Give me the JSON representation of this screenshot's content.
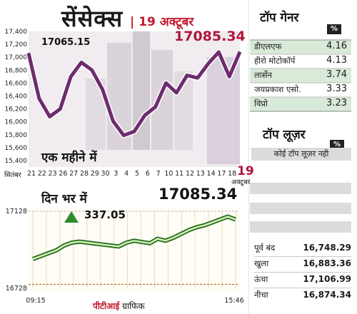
{
  "header": {
    "title": "सेंसेक्स",
    "date": "| 19 अक्टूबर"
  },
  "top_gainers": {
    "title": "टॉप गेनर",
    "unit": "%",
    "items": [
      {
        "name": "डीएलएफ",
        "value": "4.16"
      },
      {
        "name": "हीरो मोटोकॉर्प",
        "value": "4.13"
      },
      {
        "name": "लार्सेन",
        "value": "3.74"
      },
      {
        "name": "जयप्रकाश एसो.",
        "value": "3.33"
      },
      {
        "name": "विप्रो",
        "value": "3.23"
      }
    ]
  },
  "top_losers": {
    "title": "टॉप लूज़र",
    "unit": "%",
    "message": "कोई टॉप लूज़र नही"
  },
  "summary": {
    "items": [
      {
        "label": "पूर्व बंद",
        "value": "16,748.29"
      },
      {
        "label": "खुला",
        "value": "16,883.36"
      },
      {
        "label": "ऊंचा",
        "value": "17,106.99"
      },
      {
        "label": "नीचा",
        "value": "16,874.34"
      }
    ]
  },
  "credit": {
    "agency": "पीटीआई",
    "text": "ग्राफिक"
  },
  "colors": {
    "line": "#6e2c6e",
    "accent": "#b0163a",
    "gain_up": "#2e8b2e",
    "band": "#dcdcdc"
  },
  "chart_data": [
    {
      "type": "line",
      "id": "monthly",
      "title": "",
      "subtitle": "एक महीने में",
      "xlabel": "",
      "ylabel": "",
      "first_month": "सितंबर",
      "last_month": "अक्टूबर",
      "last_date": "19",
      "x_ticks": [
        "21",
        "22",
        "23",
        "26",
        "27",
        "28",
        "29",
        "30",
        "3",
        "4",
        "5",
        "6",
        "7",
        "10",
        "11",
        "12",
        "13",
        "14",
        "17",
        "18"
      ],
      "y_ticks": [
        "17,400",
        "17,200",
        "17,000",
        "16,800",
        "16,600",
        "16,400",
        "16,200",
        "16,000",
        "15,800",
        "15,600",
        "15,400"
      ],
      "ylim": [
        15300,
        17400
      ],
      "series": [
        {
          "x": [
            "21 Sep",
            "22 Sep",
            "23 Sep",
            "26 Sep",
            "27 Sep",
            "28 Sep",
            "29 Sep",
            "30 Sep",
            "3 Oct",
            "4 Oct",
            "5 Oct",
            "6 Oct",
            "7 Oct",
            "10 Oct",
            "11 Oct",
            "12 Oct",
            "13 Oct",
            "14 Oct",
            "17 Oct",
            "18 Oct",
            "19 Oct"
          ],
          "values": [
            17065.15,
            16361,
            16080,
            16200,
            16700,
            16920,
            16800,
            16500,
            16010,
            15790,
            15850,
            16100,
            16230,
            16600,
            16450,
            16720,
            16680,
            16900,
            17080,
            16700,
            17085.34
          ]
        }
      ],
      "labels": {
        "start": "17065.15",
        "end": "17085.34"
      },
      "grid": false
    },
    {
      "type": "line",
      "id": "intraday",
      "title": "",
      "subtitle": "दिन भर में",
      "xlabel": "",
      "ylabel": "",
      "x_ticks": [
        "09:15",
        "15:46"
      ],
      "y_ticks": [
        "17128",
        "16728"
      ],
      "ylim": [
        16728,
        17128
      ],
      "change": "337.05",
      "last_value": "17085.34",
      "series": [
        {
          "x": [
            "09:15",
            "09:30",
            "09:45",
            "10:00",
            "10:15",
            "10:30",
            "10:45",
            "11:00",
            "11:15",
            "11:30",
            "11:45",
            "12:00",
            "12:15",
            "12:30",
            "12:45",
            "13:00",
            "13:15",
            "13:30",
            "13:45",
            "14:00",
            "14:15",
            "14:30",
            "14:45",
            "15:00",
            "15:15",
            "15:30",
            "15:46"
          ],
          "values": [
            16880,
            16895,
            16910,
            16925,
            16950,
            16965,
            16970,
            16965,
            16960,
            16955,
            16950,
            16945,
            16965,
            16975,
            16968,
            16962,
            16985,
            16975,
            16990,
            17010,
            17030,
            17045,
            17055,
            17070,
            17085,
            17100,
            17085.34
          ]
        }
      ],
      "reference_line": 16748.29,
      "grid": false
    }
  ]
}
